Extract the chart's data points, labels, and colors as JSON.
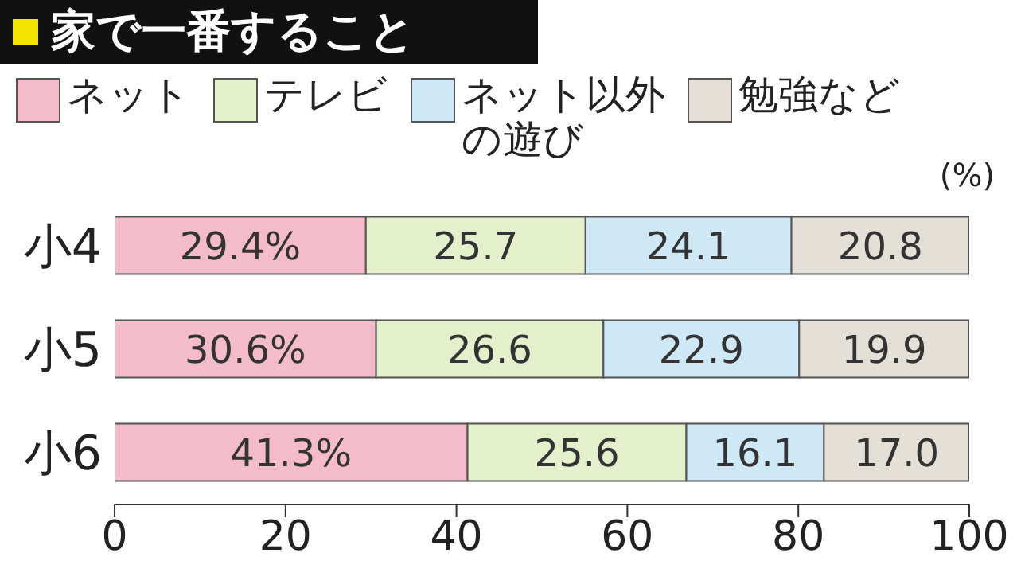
{
  "chart_data": {
    "type": "bar",
    "orientation": "horizontal",
    "stacked": true,
    "title": "家で一番すること",
    "categories": [
      "小4",
      "小5",
      "小6"
    ],
    "series": [
      {
        "name": "ネット",
        "color": "#f4bccb",
        "values": [
          29.4,
          30.6,
          41.3
        ],
        "value_labels": [
          "29.4%",
          "30.6%",
          "41.3%"
        ]
      },
      {
        "name": "テレビ",
        "color": "#e4efcc",
        "values": [
          25.7,
          26.6,
          25.6
        ],
        "value_labels": [
          "25.7",
          "26.6",
          "25.6"
        ]
      },
      {
        "name": "ネット以外の遊び",
        "color": "#cfe8f6",
        "values": [
          24.1,
          22.9,
          16.1
        ],
        "value_labels": [
          "24.1",
          "22.9",
          "16.1"
        ]
      },
      {
        "name": "勉強など",
        "color": "#e4e0d8",
        "values": [
          20.8,
          19.9,
          17.0
        ],
        "value_labels": [
          "20.8",
          "19.9",
          "17.0"
        ]
      }
    ],
    "xlim": [
      0,
      100
    ],
    "xticks": [
      0,
      20,
      40,
      60,
      80,
      100
    ],
    "legend": "top",
    "grid": false,
    "annotations": [
      "(%)"
    ]
  }
}
